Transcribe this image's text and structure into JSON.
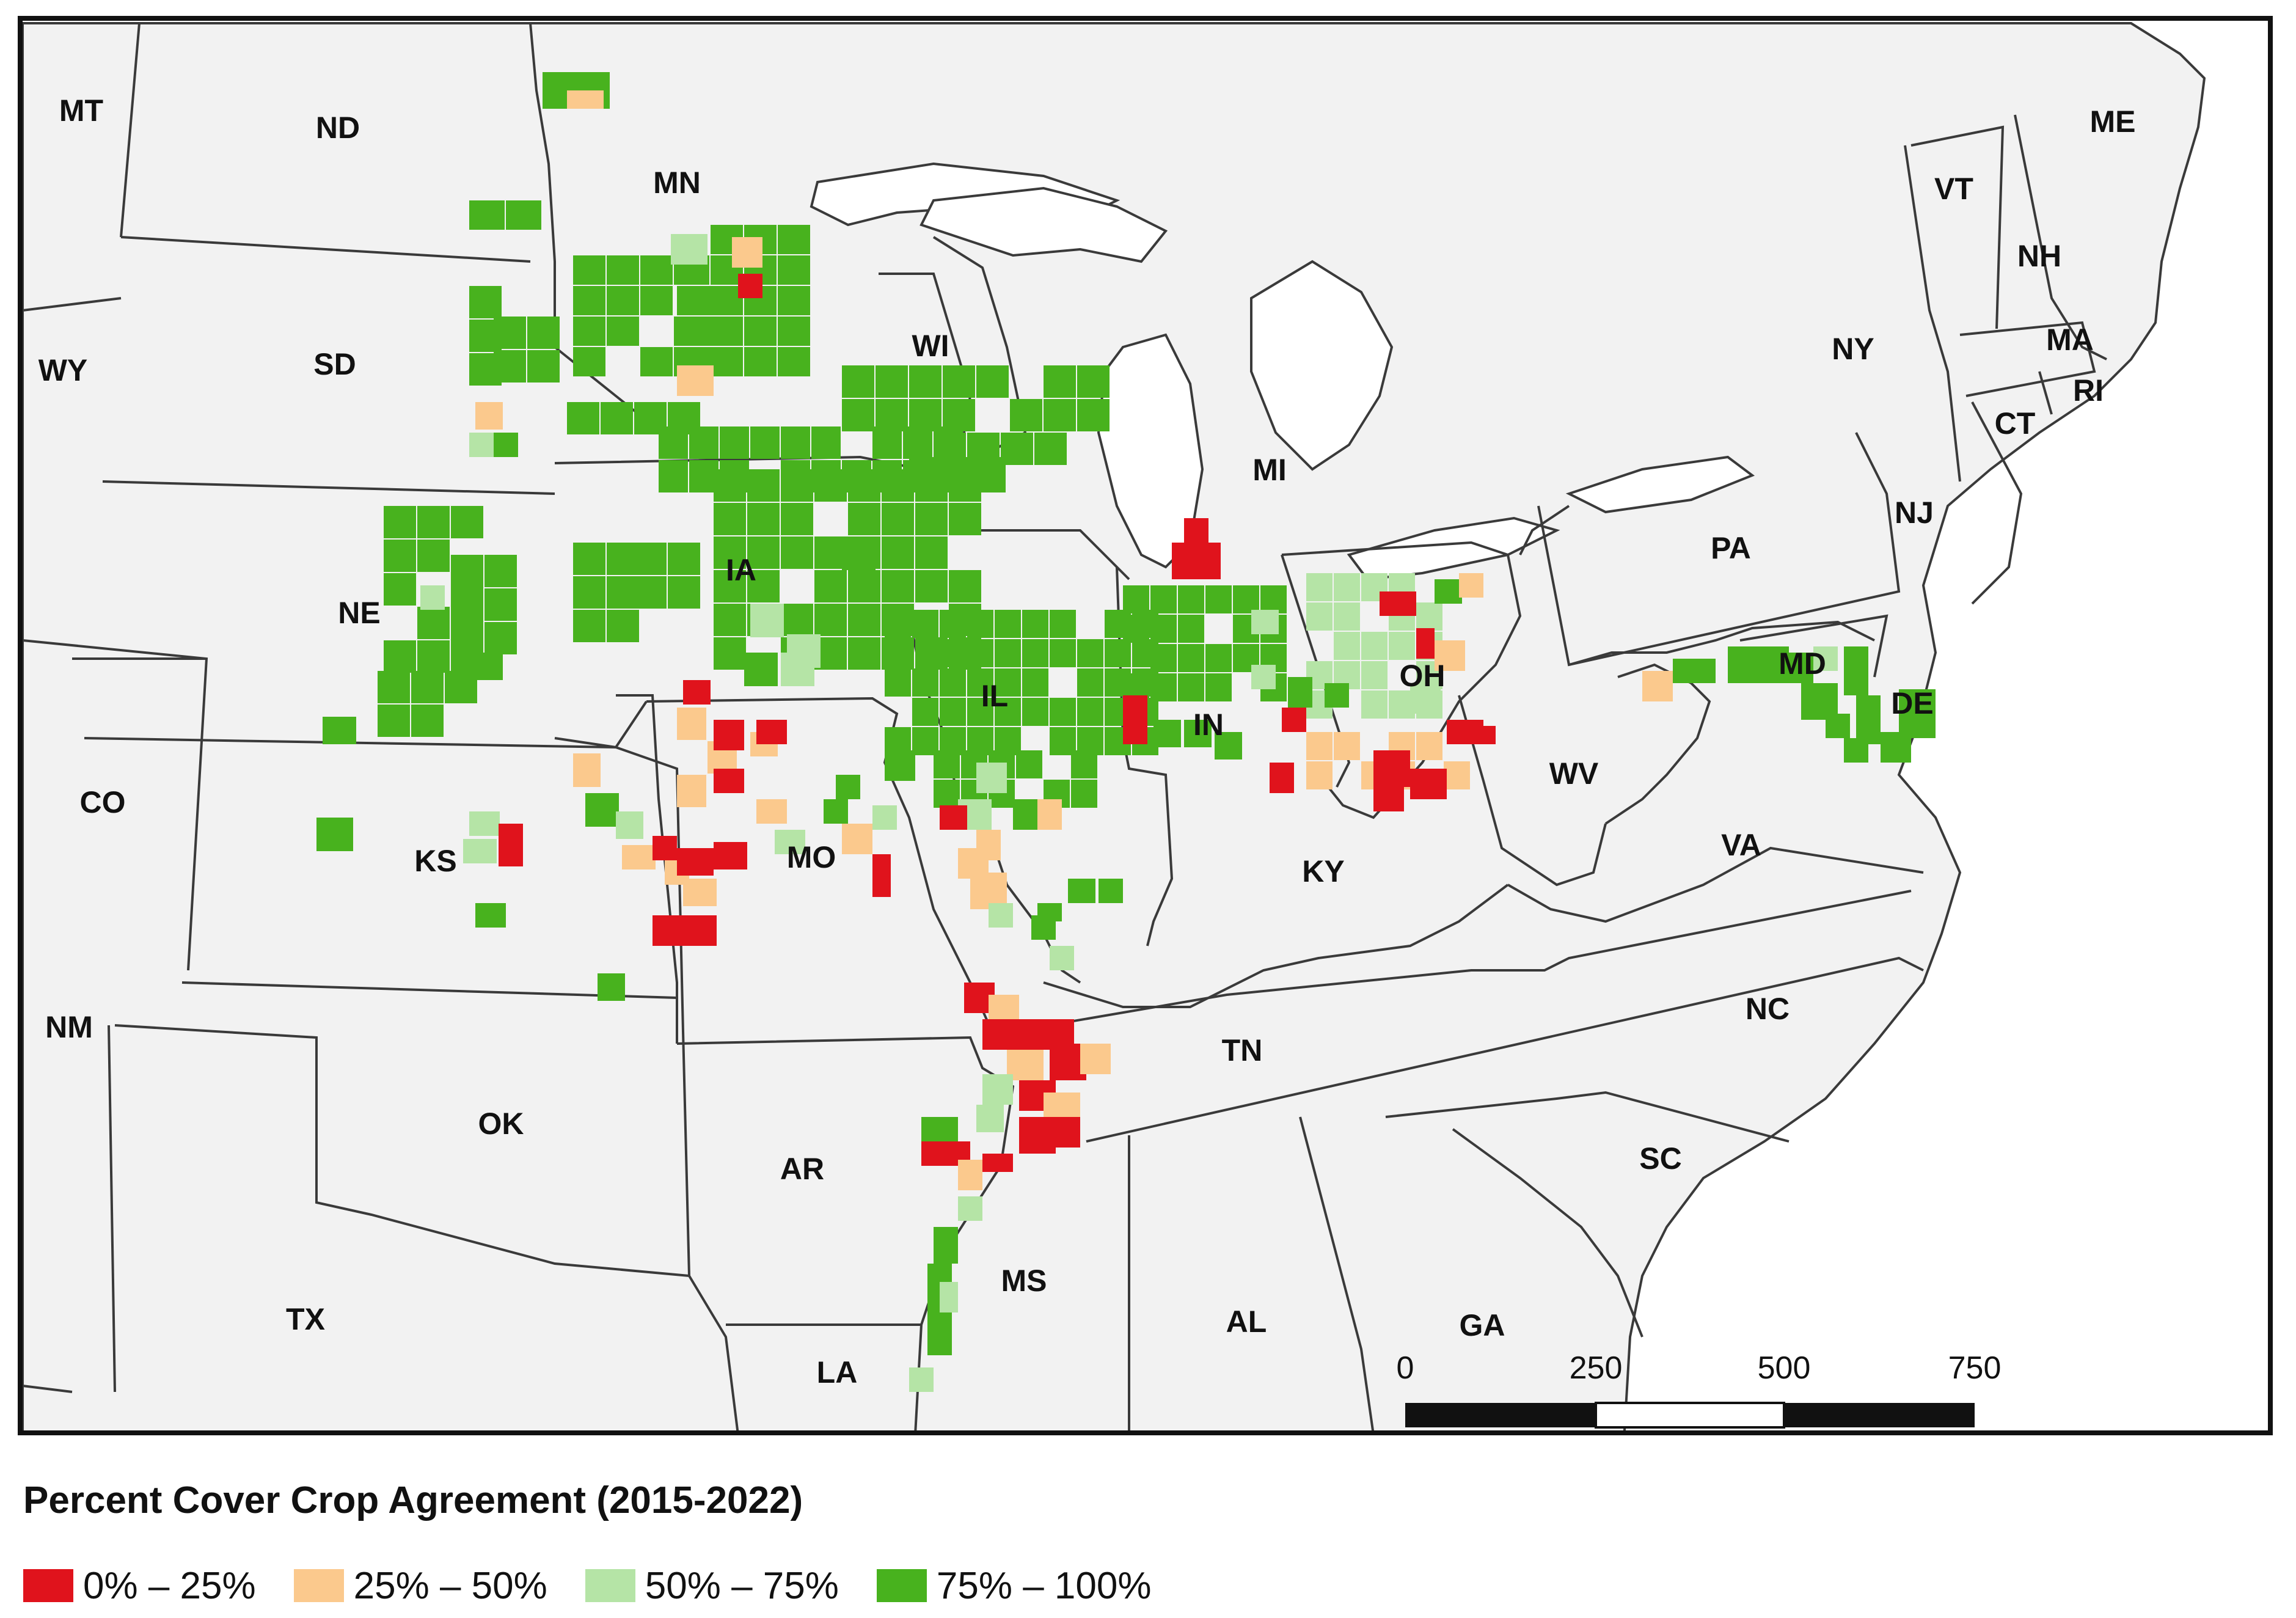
{
  "map": {
    "colors": {
      "background": "#f2f2f2",
      "border": "#3a3a3a",
      "frame": "#111111",
      "c0": "#e0131c",
      "c1": "#fbc98d",
      "c2": "#b5e4a6",
      "c3": "#48b21e"
    },
    "states": [
      "MT",
      "ND",
      "MN",
      "SD",
      "WY",
      "WI",
      "MI",
      "NE",
      "IA",
      "NY",
      "ME",
      "VT",
      "NH",
      "MA",
      "CT",
      "RI",
      "PA",
      "NJ",
      "IL",
      "IN",
      "OH",
      "MD",
      "DE",
      "WV",
      "CO",
      "KS",
      "MO",
      "KY",
      "VA",
      "NM",
      "OK",
      "TN",
      "NC",
      "AR",
      "SC",
      "TX",
      "MS",
      "AL",
      "GA",
      "LA"
    ],
    "scale_bar": {
      "ticks": [
        "0",
        "250",
        "500",
        "750"
      ]
    }
  },
  "legend": {
    "title": "Percent Cover Crop Agreement (2015-2022)",
    "items": [
      {
        "label": "0% – 25%",
        "color": "#e0131c"
      },
      {
        "label": "25% – 50%",
        "color": "#fbc98d"
      },
      {
        "label": "50% – 75%",
        "color": "#b5e4a6"
      },
      {
        "label": "75% – 100%",
        "color": "#48b21e"
      }
    ]
  }
}
